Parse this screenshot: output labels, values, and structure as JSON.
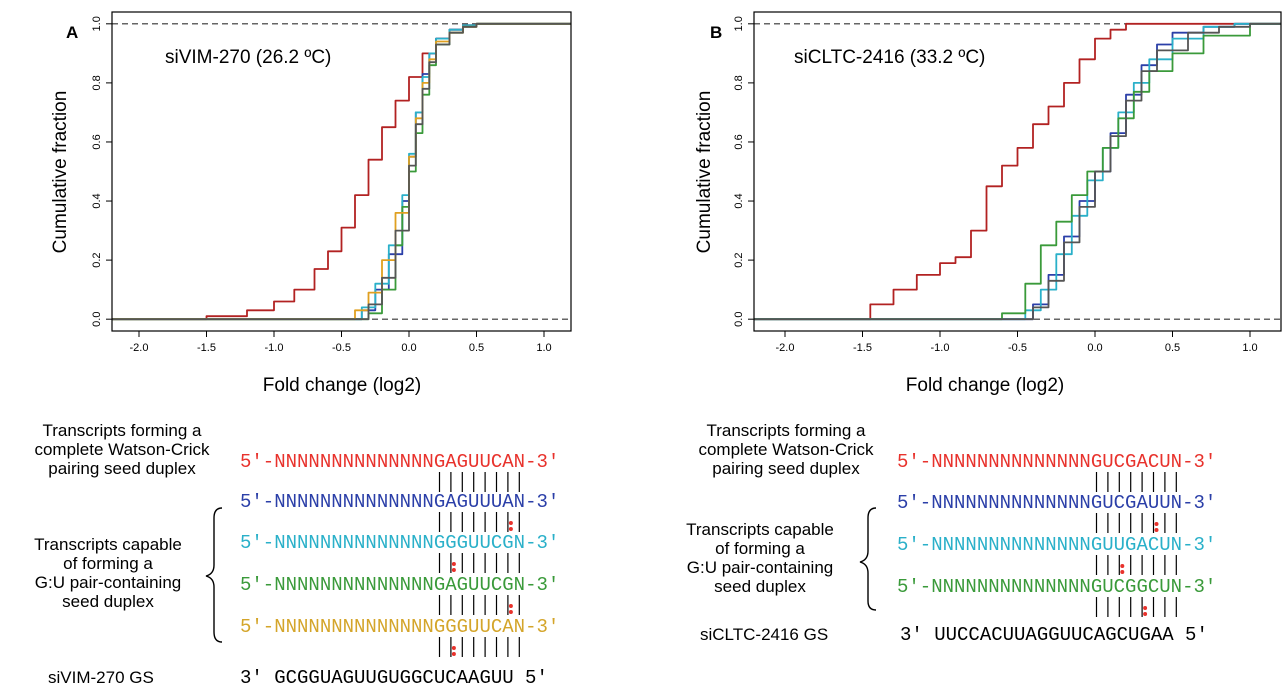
{
  "chart_data": [
    {
      "type": "line",
      "panel_label": "A",
      "inset_title": "siVIM-270 (26.2 ºC)",
      "xlabel": "Fold change (log2)",
      "ylabel": "Cumulative fraction",
      "xlim": [
        -2.2,
        1.2
      ],
      "ylim": [
        -0.04,
        1.04
      ],
      "xticks": [
        "-2.0",
        "-1.5",
        "-1.0",
        "-0.5",
        "0.0",
        "0.5",
        "1.0"
      ],
      "yticks": [
        "0.0",
        "0.2",
        "0.4",
        "0.6",
        "0.8",
        "1.0"
      ],
      "reference_lines": [
        0,
        1
      ],
      "series": [
        {
          "color": "#b22222",
          "x": [
            -1.75,
            -1.5,
            -1.2,
            -1.0,
            -0.85,
            -0.7,
            -0.6,
            -0.5,
            -0.4,
            -0.3,
            -0.2,
            -0.1,
            0.0,
            0.1,
            0.2,
            0.3,
            0.4,
            0.5
          ],
          "y": [
            0.0,
            0.01,
            0.03,
            0.06,
            0.1,
            0.17,
            0.23,
            0.31,
            0.42,
            0.54,
            0.65,
            0.74,
            0.82,
            0.9,
            0.95,
            0.98,
            0.995,
            1.0
          ]
        },
        {
          "color": "#2b3fa8",
          "x": [
            -0.5,
            -0.35,
            -0.25,
            -0.15,
            -0.05,
            0.0,
            0.05,
            0.1,
            0.15,
            0.2,
            0.3,
            0.4,
            0.5
          ],
          "y": [
            0.0,
            0.03,
            0.1,
            0.22,
            0.4,
            0.55,
            0.7,
            0.83,
            0.9,
            0.95,
            0.98,
            0.995,
            1.0
          ]
        },
        {
          "color": "#2ab0c9",
          "x": [
            -0.45,
            -0.35,
            -0.25,
            -0.15,
            -0.05,
            0.0,
            0.05,
            0.1,
            0.15,
            0.2,
            0.3,
            0.4,
            0.5
          ],
          "y": [
            0.0,
            0.04,
            0.12,
            0.25,
            0.42,
            0.56,
            0.7,
            0.82,
            0.9,
            0.95,
            0.98,
            0.995,
            1.0
          ]
        },
        {
          "color": "#3a9a3a",
          "x": [
            -0.4,
            -0.3,
            -0.2,
            -0.1,
            -0.05,
            0.0,
            0.05,
            0.1,
            0.15,
            0.2,
            0.3,
            0.4,
            0.5
          ],
          "y": [
            0.0,
            0.02,
            0.1,
            0.25,
            0.38,
            0.5,
            0.63,
            0.76,
            0.86,
            0.93,
            0.97,
            0.99,
            1.0
          ]
        },
        {
          "color": "#e0a020",
          "x": [
            -0.55,
            -0.4,
            -0.3,
            -0.2,
            -0.1,
            0.0,
            0.05,
            0.1,
            0.15,
            0.2,
            0.3,
            0.4,
            0.5
          ],
          "y": [
            0.0,
            0.03,
            0.09,
            0.2,
            0.36,
            0.55,
            0.68,
            0.8,
            0.88,
            0.94,
            0.97,
            0.99,
            1.0
          ]
        },
        {
          "color": "#555555",
          "x": [
            -0.5,
            -0.3,
            -0.2,
            -0.1,
            0.0,
            0.05,
            0.1,
            0.15,
            0.2,
            0.3,
            0.4,
            0.5
          ],
          "y": [
            0.0,
            0.05,
            0.14,
            0.3,
            0.52,
            0.66,
            0.78,
            0.87,
            0.93,
            0.97,
            0.99,
            1.0
          ]
        }
      ]
    },
    {
      "type": "line",
      "panel_label": "B",
      "inset_title": "siCLTC-2416 (33.2 ºC)",
      "xlabel": "Fold change (log2)",
      "ylabel": "Cumulative fraction",
      "xlim": [
        -2.2,
        1.2
      ],
      "ylim": [
        -0.04,
        1.04
      ],
      "xticks": [
        "-2.0",
        "-1.5",
        "-1.0",
        "-0.5",
        "0.0",
        "0.5",
        "1.0"
      ],
      "yticks": [
        "0.0",
        "0.2",
        "0.4",
        "0.6",
        "0.8",
        "1.0"
      ],
      "reference_lines": [
        0,
        1
      ],
      "series": [
        {
          "color": "#b22222",
          "x": [
            -1.55,
            -1.45,
            -1.3,
            -1.15,
            -1.0,
            -0.9,
            -0.8,
            -0.7,
            -0.6,
            -0.5,
            -0.4,
            -0.3,
            -0.2,
            -0.1,
            0.0,
            0.1,
            0.2,
            0.4
          ],
          "y": [
            0.0,
            0.05,
            0.1,
            0.15,
            0.19,
            0.21,
            0.3,
            0.45,
            0.52,
            0.58,
            0.66,
            0.72,
            0.8,
            0.88,
            0.95,
            0.98,
            1.0,
            1.0
          ]
        },
        {
          "color": "#2b3fa8",
          "x": [
            -0.45,
            -0.4,
            -0.3,
            -0.2,
            -0.1,
            0.0,
            0.1,
            0.2,
            0.3,
            0.4,
            0.5,
            0.7,
            0.9
          ],
          "y": [
            0.0,
            0.05,
            0.15,
            0.28,
            0.4,
            0.5,
            0.63,
            0.76,
            0.86,
            0.93,
            0.97,
            0.99,
            1.0
          ]
        },
        {
          "color": "#2ab0c9",
          "x": [
            -0.55,
            -0.45,
            -0.35,
            -0.25,
            -0.15,
            -0.05,
            0.05,
            0.15,
            0.25,
            0.35,
            0.5,
            0.7,
            0.9
          ],
          "y": [
            0.0,
            0.03,
            0.1,
            0.22,
            0.35,
            0.47,
            0.58,
            0.7,
            0.8,
            0.88,
            0.95,
            0.99,
            1.0
          ]
        },
        {
          "color": "#3a9a3a",
          "x": [
            -0.85,
            -0.6,
            -0.45,
            -0.35,
            -0.25,
            -0.15,
            -0.05,
            0.05,
            0.15,
            0.25,
            0.35,
            0.5,
            0.7,
            1.0
          ],
          "y": [
            0.0,
            0.02,
            0.12,
            0.25,
            0.33,
            0.42,
            0.5,
            0.58,
            0.68,
            0.77,
            0.84,
            0.9,
            0.96,
            1.0
          ]
        },
        {
          "color": "#555555",
          "x": [
            -0.5,
            -0.4,
            -0.3,
            -0.2,
            -0.1,
            0.0,
            0.1,
            0.2,
            0.3,
            0.4,
            0.6,
            0.8,
            1.0
          ],
          "y": [
            0.0,
            0.04,
            0.13,
            0.26,
            0.38,
            0.5,
            0.62,
            0.74,
            0.84,
            0.91,
            0.97,
            0.99,
            1.0
          ]
        }
      ]
    }
  ],
  "alignment_A": {
    "perfect_caption": [
      "Transcripts forming a",
      "complete Watson-Crick",
      "pairing seed duplex"
    ],
    "gu_caption": [
      "Transcripts capable",
      "of forming a",
      "G:U pair-containing",
      "seed duplex"
    ],
    "rows": [
      {
        "prefix": "5′-NNNNNNNNNNNNNN",
        "seed": "GAGUUCAN",
        "suffix": "-3′",
        "color": "#e8322c"
      },
      {
        "prefix": "5′-NNNNNNNNNNNNNN",
        "seed": "GAGUUUAN",
        "suffix": "-3′",
        "color": "#2b3fa8"
      },
      {
        "prefix": "5′-NNNNNNNNNNNNNN",
        "seed": "GGGUUCGN",
        "suffix": "-3′",
        "color": "#2ab0c9"
      },
      {
        "prefix": "5′-NNNNNNNNNNNNNN",
        "seed": "GAGUUCGN",
        "suffix": "-3′",
        "color": "#3a9a3a"
      },
      {
        "prefix": "5′-NNNNNNNNNNNNNN",
        "seed": "GGGUUCAN",
        "suffix": "-3′",
        "color": "#d4a52a"
      }
    ],
    "guide_label": "siVIM-270 GS",
    "guide_seq": "3′  GCGGUAGUUGUGGCUCAAGUU  5′",
    "wobble_positions": [
      null,
      6,
      1,
      6,
      1
    ]
  },
  "alignment_B": {
    "perfect_caption": [
      "Transcripts forming a",
      "complete  Watson-Crick",
      "pairing seed duplex"
    ],
    "gu_caption": [
      "Transcripts capable",
      "of forming a",
      "G:U pair-containing",
      "seed duplex"
    ],
    "rows": [
      {
        "prefix": "5′-NNNNNNNNNNNNNN",
        "seed": "GUCGACUN",
        "suffix": "-3′",
        "color": "#e8322c"
      },
      {
        "prefix": "5′-NNNNNNNNNNNNNN",
        "seed": "GUCGAUUN",
        "suffix": "-3′",
        "color": "#2b3fa8"
      },
      {
        "prefix": "5′-NNNNNNNNNNNNNN",
        "seed": "GUUGACUN",
        "suffix": "-3′",
        "color": "#2ab0c9"
      },
      {
        "prefix": "5′-NNNNNNNNNNNNNN",
        "seed": "GUCGGCUN",
        "suffix": "-3′",
        "color": "#3a9a3a"
      }
    ],
    "guide_label": "siCLTC-2416 GS",
    "guide_seq": "3′  UUCCACUUAGGUUCAGCUGAA  5′",
    "wobble_positions": [
      null,
      5,
      2,
      4
    ]
  },
  "colors": {
    "wobble": "#e8322c",
    "axis": "#000000",
    "dashed": "#333333"
  }
}
